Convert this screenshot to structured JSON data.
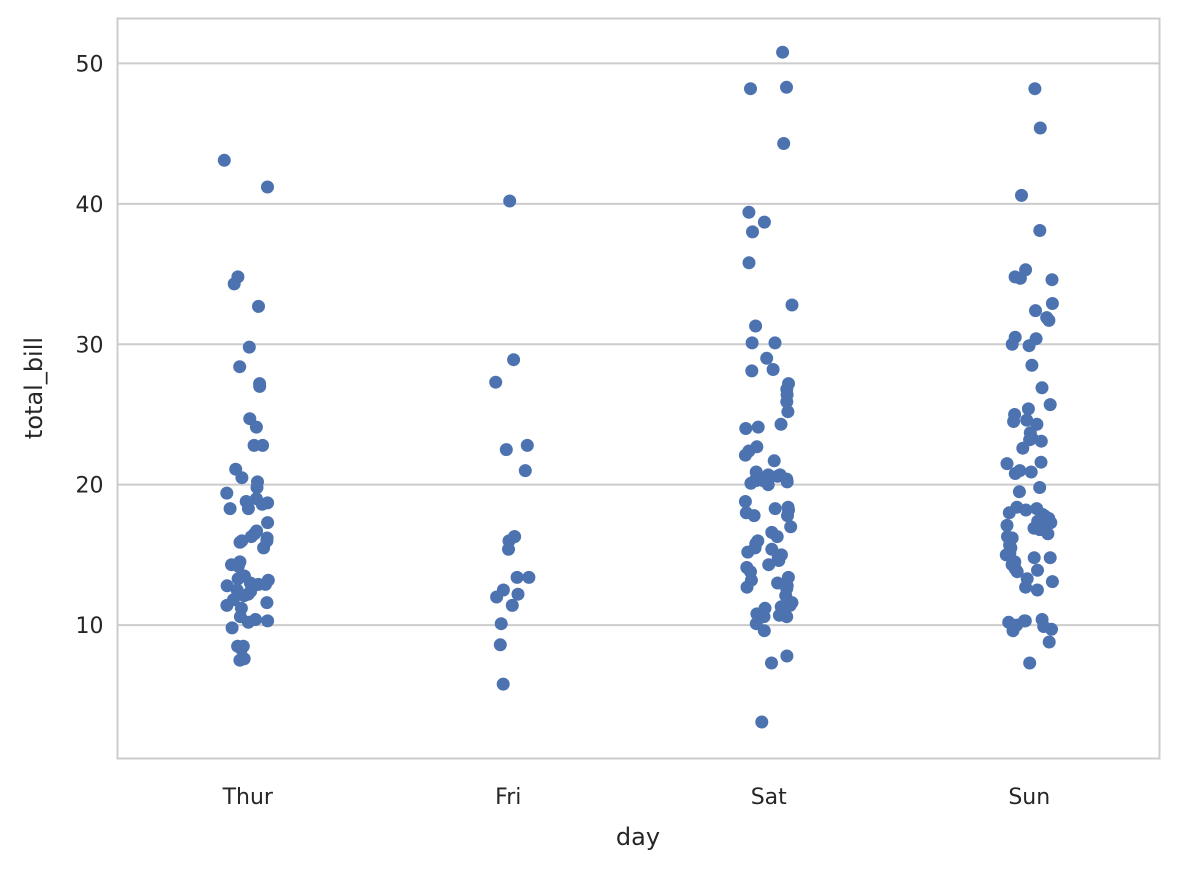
{
  "chart_data": {
    "type": "scatter",
    "subtype": "strip",
    "title": "",
    "xlabel": "day",
    "ylabel": "total_bill",
    "categories": [
      "Thur",
      "Fri",
      "Sat",
      "Sun"
    ],
    "ylim": [
      0.5,
      53.2
    ],
    "yticks": [
      10,
      20,
      30,
      40,
      50
    ],
    "grid": "horizontal",
    "legend": "none",
    "colors": {
      "point": "#4c72b0",
      "grid": "#cccccc",
      "frame": "#cccccc",
      "text": "#262626"
    },
    "series": [
      {
        "category": "Thur",
        "values": [
          43.1,
          41.2,
          34.8,
          34.3,
          32.7,
          29.8,
          28.4,
          27.2,
          27.0,
          24.7,
          24.1,
          22.8,
          22.8,
          21.1,
          20.5,
          20.2,
          19.8,
          19.4,
          19.0,
          18.8,
          18.7,
          18.6,
          18.3,
          18.3,
          17.3,
          16.7,
          16.5,
          16.3,
          16.2,
          16.0,
          16.0,
          15.9,
          15.5,
          14.5,
          14.3,
          14.2,
          13.5,
          13.3,
          13.2,
          13.0,
          12.9,
          12.9,
          12.8,
          12.5,
          12.4,
          12.2,
          12.1,
          11.8,
          11.6,
          11.4,
          11.2,
          10.6,
          10.4,
          10.3,
          10.2,
          9.8,
          8.5,
          8.5,
          8.3,
          7.6,
          7.5
        ]
      },
      {
        "category": "Fri",
        "values": [
          40.2,
          28.9,
          27.3,
          22.8,
          22.5,
          21.0,
          16.3,
          16.3,
          16.0,
          15.4,
          13.4,
          13.4,
          12.5,
          12.2,
          12.0,
          11.4,
          10.1,
          8.6,
          5.8
        ]
      },
      {
        "category": "Sat",
        "values": [
          50.8,
          48.3,
          48.2,
          44.3,
          39.4,
          38.7,
          38.0,
          35.8,
          32.8,
          31.3,
          30.1,
          30.1,
          29.0,
          28.2,
          28.1,
          27.2,
          26.8,
          26.4,
          25.9,
          25.2,
          24.3,
          24.1,
          24.0,
          22.7,
          22.4,
          22.1,
          21.7,
          20.9,
          20.7,
          20.7,
          20.6,
          20.5,
          20.4,
          20.3,
          20.3,
          20.2,
          20.1,
          20.0,
          18.8,
          18.4,
          18.3,
          18.2,
          18.0,
          17.8,
          17.8,
          17.0,
          16.6,
          16.3,
          16.0,
          15.8,
          15.5,
          15.4,
          15.2,
          15.0,
          14.8,
          14.6,
          14.3,
          14.1,
          13.8,
          13.4,
          13.2,
          13.0,
          12.8,
          12.7,
          12.6,
          12.1,
          11.6,
          11.4,
          11.3,
          11.2,
          10.8,
          10.7,
          10.6,
          10.6,
          10.1,
          9.6,
          7.8,
          7.3,
          3.1
        ]
      },
      {
        "category": "Sun",
        "values": [
          48.2,
          45.4,
          40.6,
          38.1,
          35.3,
          34.8,
          34.7,
          34.6,
          32.9,
          32.4,
          31.9,
          31.7,
          30.5,
          30.4,
          30.0,
          29.9,
          28.5,
          26.9,
          25.7,
          25.4,
          25.0,
          24.6,
          24.5,
          24.3,
          23.7,
          23.3,
          23.2,
          23.1,
          22.6,
          21.6,
          21.5,
          21.0,
          20.9,
          20.8,
          19.8,
          19.5,
          18.4,
          18.3,
          18.2,
          18.0,
          17.9,
          17.8,
          17.6,
          17.5,
          17.4,
          17.3,
          17.1,
          17.0,
          16.9,
          16.8,
          16.5,
          16.3,
          16.2,
          15.7,
          15.5,
          15.1,
          15.0,
          14.8,
          14.8,
          14.5,
          14.3,
          14.0,
          13.9,
          13.8,
          13.3,
          13.1,
          12.7,
          12.5,
          10.4,
          10.3,
          10.3,
          10.2,
          10.0,
          9.9,
          9.7,
          9.6,
          8.8,
          7.3
        ]
      }
    ]
  }
}
